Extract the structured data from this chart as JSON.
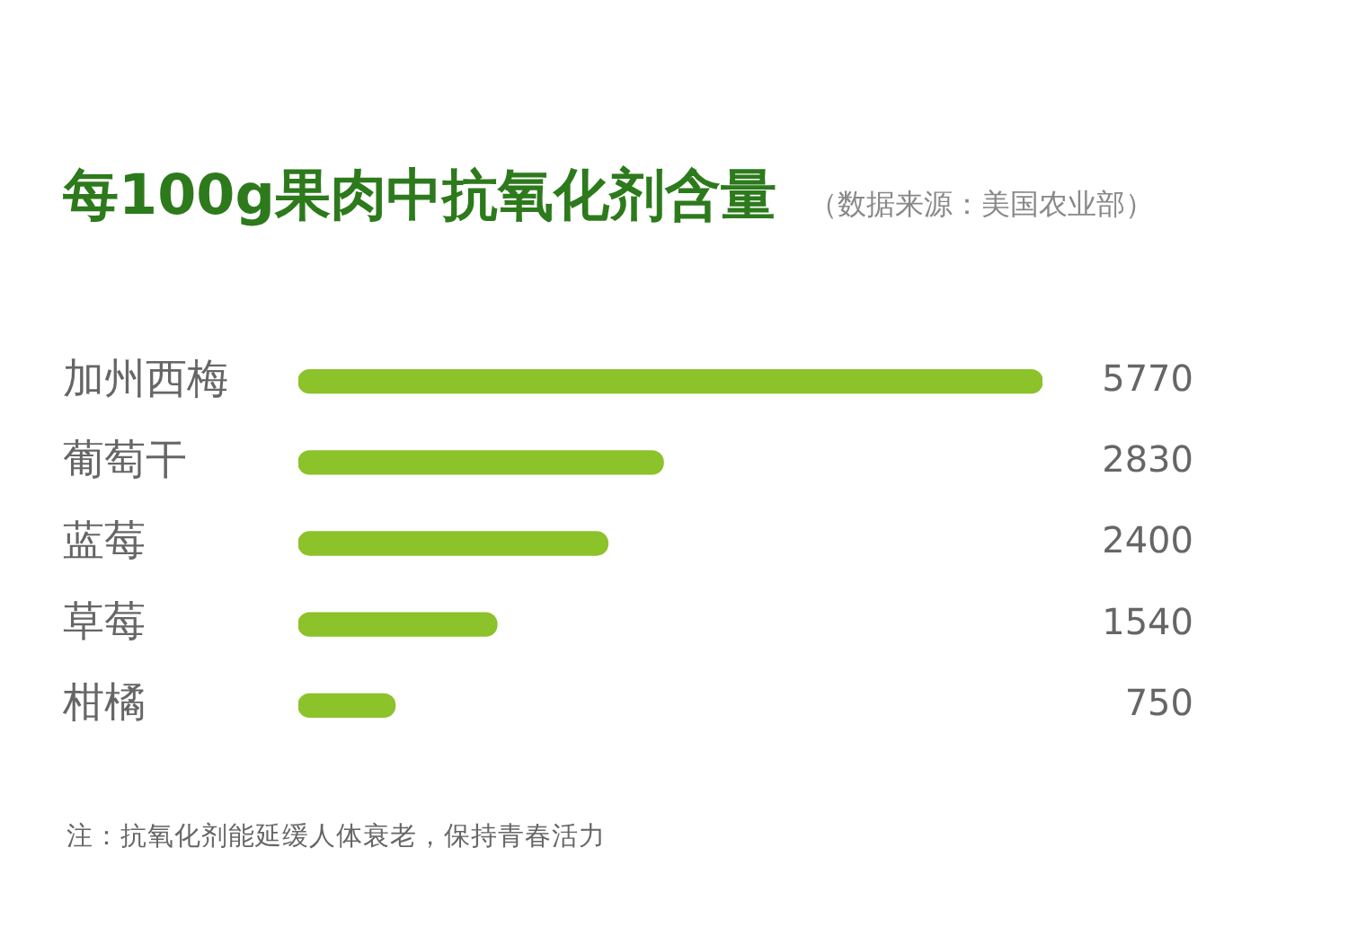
{
  "chart_data": {
    "type": "bar",
    "orientation": "horizontal",
    "title": "每100g果肉中抗氧化剂含量",
    "subtitle": "（数据来源：美国农业部）",
    "categories": [
      "加州西梅",
      "葡萄干",
      "蓝莓",
      "草莓",
      "柑橘"
    ],
    "values": [
      5770,
      2830,
      2400,
      1540,
      750
    ],
    "color": "#8cc22a",
    "data_labels": true,
    "tick_labels": "y",
    "annotations": [
      "注：抗氧化剂能延缓人体衰老，保持青春活力"
    ]
  }
}
